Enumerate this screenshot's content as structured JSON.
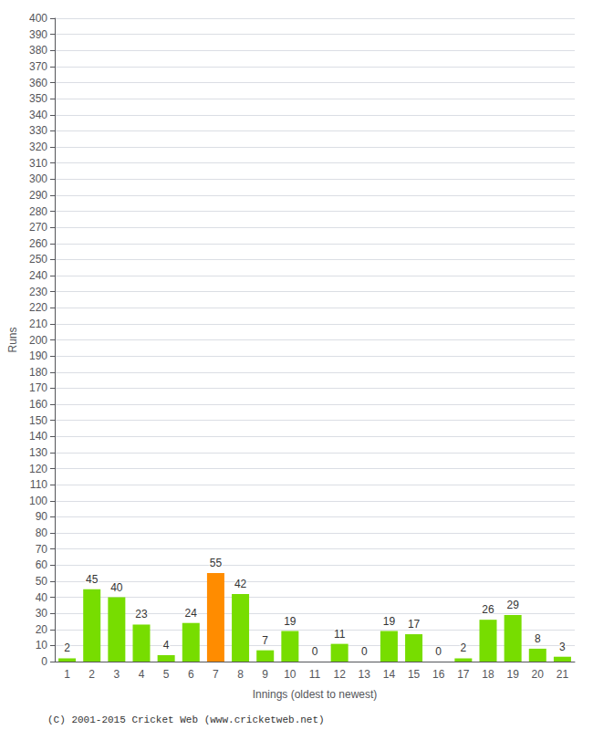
{
  "chart_data": {
    "type": "bar",
    "xlabel": "Innings (oldest to newest)",
    "ylabel": "Runs",
    "categories": [
      1,
      2,
      3,
      4,
      5,
      6,
      7,
      8,
      9,
      10,
      11,
      12,
      13,
      14,
      15,
      16,
      17,
      18,
      19,
      20,
      21
    ],
    "values": [
      2,
      45,
      40,
      23,
      4,
      24,
      55,
      42,
      7,
      19,
      0,
      11,
      0,
      19,
      17,
      0,
      2,
      26,
      29,
      8,
      3
    ],
    "colors": [
      "#77dd00",
      "#77dd00",
      "#77dd00",
      "#77dd00",
      "#77dd00",
      "#77dd00",
      "#ff8c00",
      "#77dd00",
      "#77dd00",
      "#77dd00",
      "#77dd00",
      "#77dd00",
      "#77dd00",
      "#77dd00",
      "#77dd00",
      "#77dd00",
      "#77dd00",
      "#77dd00",
      "#77dd00",
      "#77dd00",
      "#77dd00"
    ],
    "ylim": [
      0,
      400
    ],
    "yticks": [
      0,
      10,
      20,
      30,
      40,
      50,
      60,
      70,
      80,
      90,
      100,
      110,
      120,
      130,
      140,
      150,
      160,
      170,
      180,
      190,
      200,
      210,
      220,
      230,
      240,
      250,
      260,
      270,
      280,
      290,
      300,
      310,
      320,
      330,
      340,
      350,
      360,
      370,
      380,
      390,
      400
    ],
    "grid": true,
    "data_labels": true,
    "annotation": "(C) 2001-2015 Cricket Web (www.cricketweb.net)"
  }
}
